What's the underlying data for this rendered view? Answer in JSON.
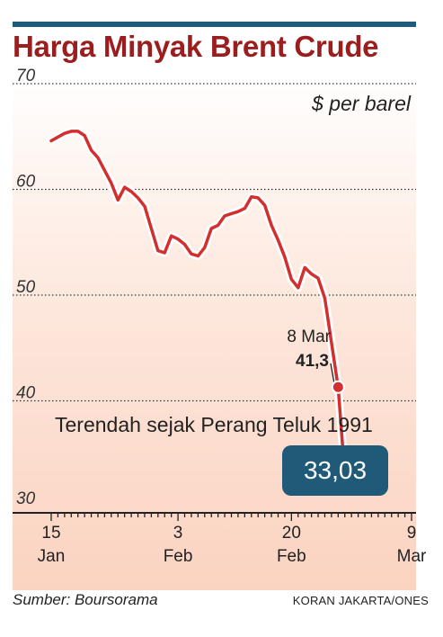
{
  "title": "Harga Minyak Brent Crude",
  "unit_label": "$ per barel",
  "source": "Sumber: Boursorama",
  "credit": "KORAN JAKARTA/ONES",
  "colors": {
    "title": "#9b1d1d",
    "rule": "#1f5a78",
    "line": "#d32f2f",
    "badge": "#1f5a78"
  },
  "chart_data": {
    "type": "line",
    "title": "Harga Minyak Brent Crude",
    "ylabel": "$ per barel",
    "ylim": [
      30,
      70
    ],
    "yticks": [
      30,
      40,
      50,
      60,
      70
    ],
    "grid": true,
    "xticks": [
      {
        "day": 0,
        "line1": "15",
        "line2": "Jan"
      },
      {
        "day": 19,
        "line1": "3",
        "line2": "Feb"
      },
      {
        "day": 36,
        "line1": "20",
        "line2": "Feb"
      },
      {
        "day": 54,
        "line1": "9",
        "line2": "Mar"
      }
    ],
    "series": [
      {
        "points": [
          [
            0,
            64.6
          ],
          [
            2,
            65.3
          ],
          [
            3,
            65.5
          ],
          [
            4,
            65.5
          ],
          [
            5,
            65.1
          ],
          [
            6,
            63.7
          ],
          [
            7,
            63.0
          ],
          [
            9,
            60.6
          ],
          [
            10,
            59.0
          ],
          [
            11,
            60.2
          ],
          [
            12,
            59.8
          ],
          [
            13,
            59.2
          ],
          [
            14,
            58.4
          ],
          [
            16,
            54.2
          ],
          [
            17,
            54.0
          ],
          [
            18,
            55.6
          ],
          [
            19,
            55.3
          ],
          [
            20,
            54.8
          ],
          [
            21,
            53.9
          ],
          [
            22,
            53.7
          ],
          [
            23,
            54.5
          ],
          [
            24,
            56.3
          ],
          [
            25,
            56.6
          ],
          [
            26,
            57.5
          ],
          [
            27,
            57.7
          ],
          [
            28,
            57.9
          ],
          [
            29,
            58.2
          ],
          [
            30,
            59.3
          ],
          [
            31,
            59.2
          ],
          [
            32,
            58.5
          ],
          [
            33,
            56.6
          ],
          [
            34,
            55.2
          ],
          [
            35,
            53.6
          ],
          [
            36,
            51.5
          ],
          [
            37,
            50.7
          ],
          [
            38,
            52.6
          ],
          [
            39,
            52.0
          ],
          [
            40,
            51.6
          ],
          [
            41,
            49.7
          ],
          [
            42,
            45.5
          ],
          [
            43,
            41.3
          ],
          [
            44,
            33.03
          ]
        ]
      }
    ],
    "annotations": [
      {
        "date": "8 Mar",
        "value": "41,3",
        "day": 43,
        "y": 41.3
      },
      {
        "value": "33,03",
        "day": 44,
        "y": 33.03
      }
    ],
    "note": "Terendah sejak Perang Teluk 1991"
  }
}
